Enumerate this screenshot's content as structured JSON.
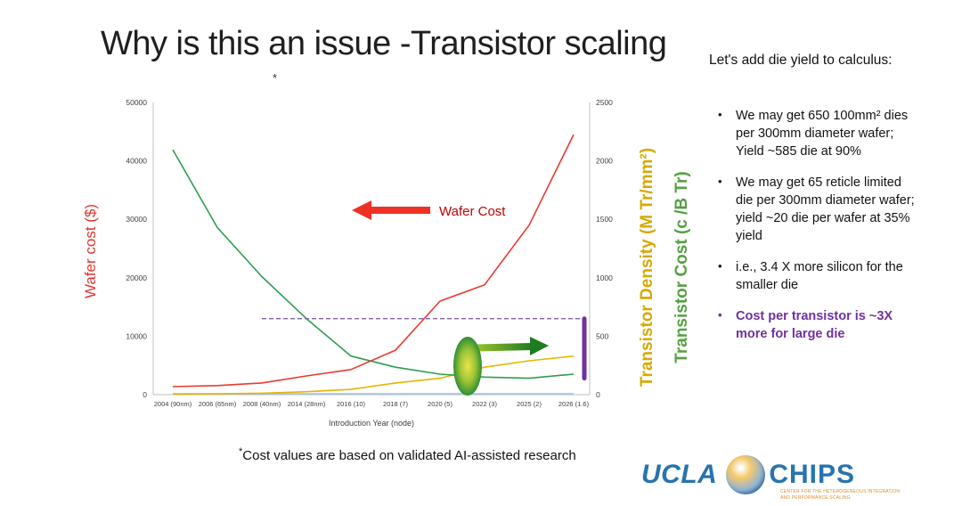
{
  "slide": {
    "title": "Why is this an issue -Transistor scaling",
    "title_footnote_marker": "*",
    "footnote": {
      "marker": "*",
      "text": "Cost values are based on validated AI-assisted research"
    }
  },
  "right_panel": {
    "heading": "Let's add die yield to calculus:",
    "bullets": [
      {
        "text": "We may get 650 100mm² dies per 300mm diameter wafer; Yield ~585 die at 90%"
      },
      {
        "text": "We may get 65 reticle limited die per 300mm diameter wafer; yield ~20 die per wafer at 35% yield"
      },
      {
        "text": "i.e., 3.4 X more silicon for the smaller die"
      },
      {
        "text": "Cost per transistor is ~3X more for large die"
      }
    ],
    "emphasis_color": "#7030a0"
  },
  "chart_data": {
    "type": "line",
    "xlabel": "Introduction Year (node)",
    "ylabel_left": "Wafer cost ($)",
    "ylabel_right_density": "Transistor Density (M Tr/mm²)",
    "ylabel_right_cost": "Transistor Cost (c /B Tr)",
    "categories": [
      "2004 (90nm)",
      "2006 (65nm)",
      "2008 (40nm)",
      "2014 (28nm)",
      "2016 (10)",
      "2018 (7)",
      "2020 (5)",
      "2022 (3)",
      "2025 (2)",
      "2026 (1.6)"
    ],
    "left_axis": {
      "min": 0,
      "max": 50000,
      "ticks": [
        0,
        10000,
        20000,
        30000,
        40000,
        50000
      ]
    },
    "right_axis": {
      "min": 0,
      "max": 2500,
      "ticks": [
        0,
        500,
        1000,
        1500,
        2000,
        2500
      ]
    },
    "grid": false,
    "legend": "none",
    "series": [
      {
        "name": "unlabeled (flat blue)",
        "axis": "right",
        "color": "#9dc3e6",
        "values": [
          8,
          8,
          8,
          8,
          8,
          8,
          8,
          8,
          8,
          8
        ]
      },
      {
        "name": "Transistor Density (M Tr/mm²)",
        "axis": "right",
        "color": "#e8b400",
        "values": [
          5,
          8,
          12,
          25,
          45,
          100,
          140,
          235,
          290,
          330
        ]
      },
      {
        "name": "Transistor Cost (c /B Tr)",
        "axis": "right",
        "color": "#2e9e4f",
        "values": [
          2095,
          1430,
          1010,
          650,
          330,
          235,
          175,
          150,
          140,
          175
        ]
      },
      {
        "name": "Wafer Cost ($)",
        "axis": "left",
        "color": "#e8392f",
        "values": [
          1370,
          1550,
          2000,
          3200,
          4300,
          7600,
          16000,
          18800,
          29000,
          44500
        ]
      }
    ],
    "annotations": {
      "wafer_cost_label": "Wafer Cost",
      "dashed_line_value_right_axis": 650,
      "dashed_line_color": "#8064a2",
      "purple_bar_right_axis_range": [
        140,
        650
      ],
      "purple_bar_color": "#7030a0",
      "red_arrow_direction": "left",
      "green_arrow_direction": "right"
    }
  },
  "logo": {
    "ucla": "UCLA",
    "chips": "CHIPS",
    "tagline_line1": "CENTER FOR THE HETEROGENEOUS INTEGRATION",
    "tagline_line2": "AND PERFORMANCE SCALING",
    "brand_blue": "#2774ae",
    "tagline_orange": "#d98e2b"
  }
}
